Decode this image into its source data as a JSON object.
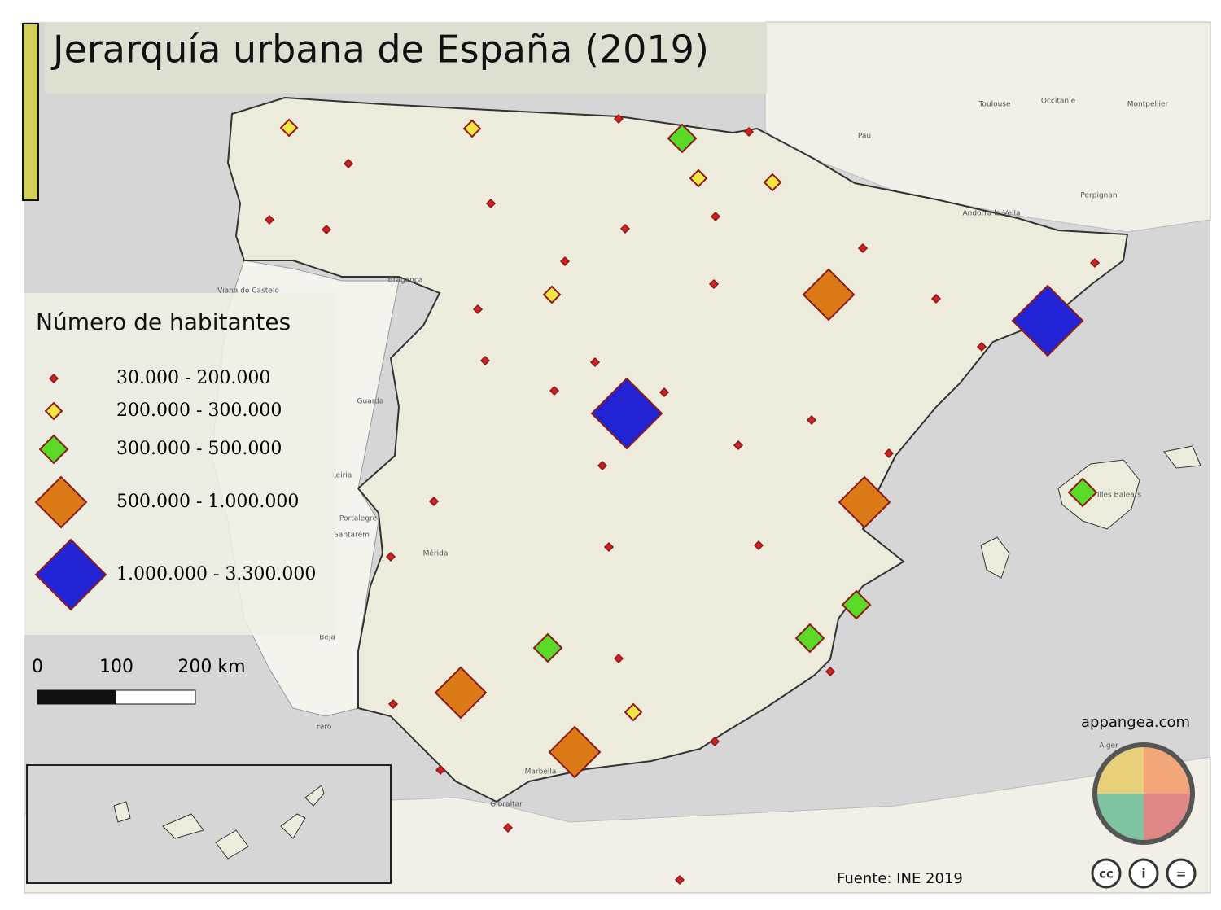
{
  "title": "Jerarquía urbana de España (2019)",
  "legend": {
    "title": "Número de habitantes",
    "items": [
      "30.000 - 200.000",
      "200.000 - 300.000",
      "300.000 - 500.000",
      "500.000 - 1.000.000",
      "1.000.000 - 3.300.000"
    ]
  },
  "scale_bar": {
    "labels": [
      "0",
      "100",
      "200 km"
    ]
  },
  "source": "Fuente: INE 2019",
  "credit": "appangea.com",
  "license_icons": [
    "cc",
    "i",
    "="
  ],
  "place_labels": [
    "Toulouse",
    "Occitanie",
    "Montpellier",
    "Pau",
    "Perpignan",
    "Andorra la Vella",
    "Bragança",
    "Viana do Castelo",
    "Guarda",
    "Leiria",
    "Portalegre",
    "Santarém",
    "Beja",
    "Faro",
    "Gibraltar",
    "Alger",
    "Mérida",
    "Marbella",
    "Illes Balears"
  ]
}
